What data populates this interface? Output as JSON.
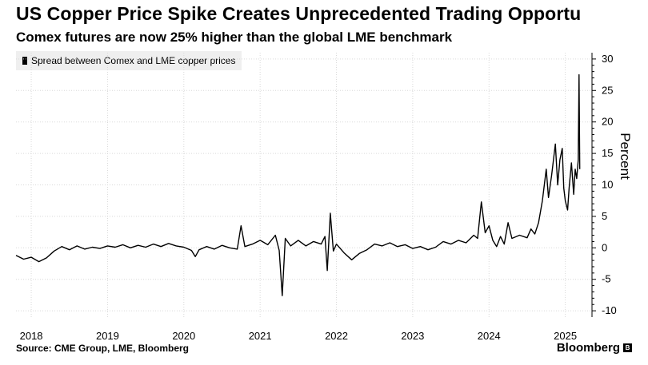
{
  "header": {
    "title": "US Copper Price Spike Creates Unprecedented Trading Opportu",
    "subtitle": "Comex futures are now 25% higher than the global LME benchmark"
  },
  "footer": {
    "source": "Source: CME Group, LME, Bloomberg",
    "brand": "Bloomberg"
  },
  "colors": {
    "line": "#000000",
    "grid": "#d9d9d9",
    "legend_bg": "#efefef"
  },
  "chart_data": {
    "type": "line",
    "title": "US Copper Price Spike Creates Unprecedented Trading Opportu",
    "subtitle": "Comex futures are now 25% higher than the global LME benchmark",
    "xlabel": "",
    "ylabel": "Percent",
    "ylim": [
      -11,
      31
    ],
    "yticks": [
      30,
      25,
      20,
      15,
      10,
      5,
      0,
      -5,
      -10
    ],
    "xlim": [
      2017.8,
      2025.35
    ],
    "xticks": [
      {
        "label": "2018",
        "value": 2018.0
      },
      {
        "label": "2019",
        "value": 2019.0
      },
      {
        "label": "2020",
        "value": 2020.0
      },
      {
        "label": "2021",
        "value": 2021.0
      },
      {
        "label": "2022",
        "value": 2022.0
      },
      {
        "label": "2023",
        "value": 2023.0
      },
      {
        "label": "2024",
        "value": 2024.0
      },
      {
        "label": "2025",
        "value": 2025.0
      }
    ],
    "legend": "top-left",
    "series": [
      {
        "name": "Spread between Comex and LME copper prices",
        "points": [
          [
            2017.8,
            -1.2
          ],
          [
            2017.9,
            -1.8
          ],
          [
            2018.0,
            -1.5
          ],
          [
            2018.1,
            -2.2
          ],
          [
            2018.2,
            -1.6
          ],
          [
            2018.3,
            -0.5
          ],
          [
            2018.4,
            0.2
          ],
          [
            2018.5,
            -0.3
          ],
          [
            2018.6,
            0.3
          ],
          [
            2018.7,
            -0.2
          ],
          [
            2018.8,
            0.1
          ],
          [
            2018.9,
            -0.1
          ],
          [
            2019.0,
            0.3
          ],
          [
            2019.1,
            0.1
          ],
          [
            2019.2,
            0.5
          ],
          [
            2019.3,
            0.0
          ],
          [
            2019.4,
            0.4
          ],
          [
            2019.5,
            0.1
          ],
          [
            2019.6,
            0.6
          ],
          [
            2019.7,
            0.2
          ],
          [
            2019.8,
            0.7
          ],
          [
            2019.9,
            0.3
          ],
          [
            2020.0,
            0.1
          ],
          [
            2020.1,
            -0.4
          ],
          [
            2020.15,
            -1.4
          ],
          [
            2020.2,
            -0.3
          ],
          [
            2020.3,
            0.2
          ],
          [
            2020.4,
            -0.2
          ],
          [
            2020.5,
            0.4
          ],
          [
            2020.6,
            0.0
          ],
          [
            2020.7,
            -0.2
          ],
          [
            2020.75,
            3.5
          ],
          [
            2020.8,
            0.2
          ],
          [
            2020.9,
            0.6
          ],
          [
            2021.0,
            1.2
          ],
          [
            2021.1,
            0.5
          ],
          [
            2021.2,
            2.0
          ],
          [
            2021.25,
            -0.4
          ],
          [
            2021.29,
            -7.6
          ],
          [
            2021.33,
            1.5
          ],
          [
            2021.4,
            0.3
          ],
          [
            2021.5,
            1.2
          ],
          [
            2021.6,
            0.3
          ],
          [
            2021.7,
            1.0
          ],
          [
            2021.8,
            0.6
          ],
          [
            2021.85,
            1.8
          ],
          [
            2021.88,
            -3.6
          ],
          [
            2021.92,
            5.5
          ],
          [
            2021.96,
            -0.5
          ],
          [
            2022.0,
            0.6
          ],
          [
            2022.1,
            -0.8
          ],
          [
            2022.2,
            -1.9
          ],
          [
            2022.3,
            -0.9
          ],
          [
            2022.4,
            -0.3
          ],
          [
            2022.5,
            0.6
          ],
          [
            2022.6,
            0.3
          ],
          [
            2022.7,
            0.8
          ],
          [
            2022.8,
            0.2
          ],
          [
            2022.9,
            0.5
          ],
          [
            2023.0,
            -0.1
          ],
          [
            2023.1,
            0.2
          ],
          [
            2023.2,
            -0.3
          ],
          [
            2023.3,
            0.1
          ],
          [
            2023.4,
            1.0
          ],
          [
            2023.5,
            0.6
          ],
          [
            2023.6,
            1.2
          ],
          [
            2023.7,
            0.8
          ],
          [
            2023.8,
            2.0
          ],
          [
            2023.85,
            1.5
          ],
          [
            2023.9,
            7.3
          ],
          [
            2023.95,
            2.4
          ],
          [
            2024.0,
            3.5
          ],
          [
            2024.05,
            1.2
          ],
          [
            2024.1,
            0.2
          ],
          [
            2024.15,
            1.8
          ],
          [
            2024.2,
            0.6
          ],
          [
            2024.25,
            4.0
          ],
          [
            2024.3,
            1.5
          ],
          [
            2024.4,
            2.0
          ],
          [
            2024.5,
            1.6
          ],
          [
            2024.55,
            3.0
          ],
          [
            2024.6,
            2.2
          ],
          [
            2024.65,
            4.0
          ],
          [
            2024.7,
            7.5
          ],
          [
            2024.75,
            12.5
          ],
          [
            2024.78,
            8.0
          ],
          [
            2024.82,
            11.5
          ],
          [
            2024.87,
            16.5
          ],
          [
            2024.9,
            10.0
          ],
          [
            2024.93,
            14.0
          ],
          [
            2024.96,
            15.8
          ],
          [
            2024.98,
            9.5
          ],
          [
            2025.0,
            7.5
          ],
          [
            2025.03,
            6.0
          ],
          [
            2025.05,
            9.5
          ],
          [
            2025.08,
            13.5
          ],
          [
            2025.11,
            8.5
          ],
          [
            2025.13,
            12.5
          ],
          [
            2025.15,
            11.0
          ],
          [
            2025.17,
            14.0
          ],
          [
            2025.18,
            27.5
          ],
          [
            2025.19,
            12.5
          ]
        ]
      }
    ]
  }
}
